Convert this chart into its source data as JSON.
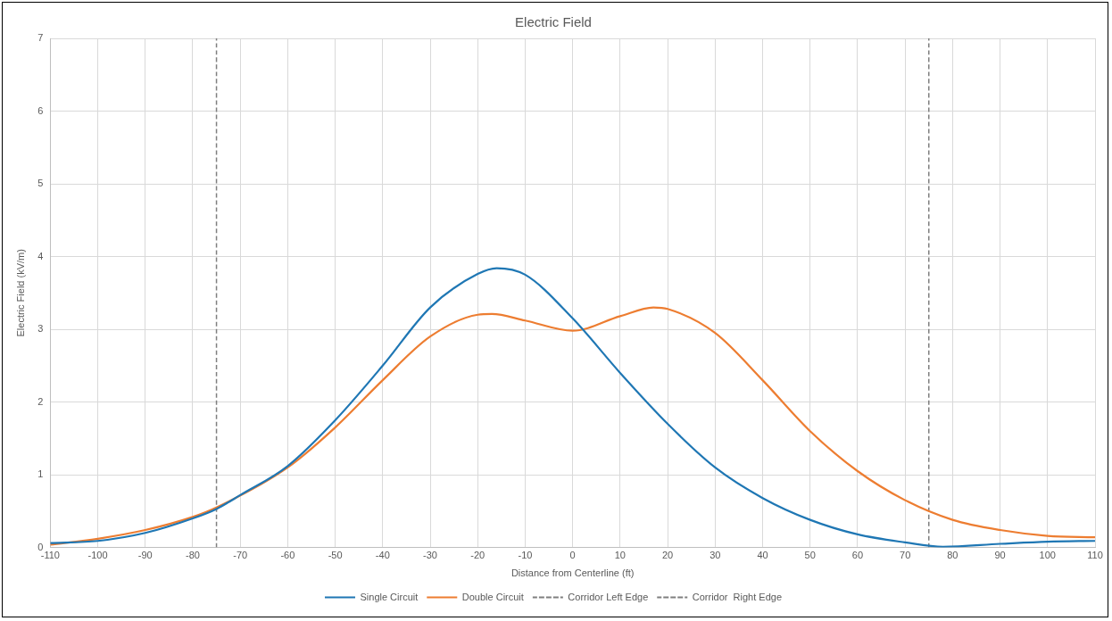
{
  "chart_data": {
    "type": "line",
    "title": "Electric Field",
    "xlabel": "Distance from Centerline (ft)",
    "ylabel": "Electric Field (kV/m)",
    "xlim": [
      -110,
      110
    ],
    "xticks": [
      -110,
      -100,
      -90,
      -80,
      -70,
      -60,
      -50,
      -40,
      -30,
      -20,
      -10,
      0,
      10,
      20,
      30,
      40,
      50,
      60,
      70,
      80,
      90,
      100,
      110
    ],
    "ylim": [
      0,
      7
    ],
    "yticks": [
      0,
      1,
      2,
      3,
      4,
      5,
      6,
      7
    ],
    "grid": true,
    "legend": "bottom",
    "marker": "none",
    "series": [
      {
        "name": "Single Circuit",
        "color": "#1f77b4",
        "line_style": "solid",
        "x": [
          -110,
          -100,
          -90,
          -80,
          -75,
          -70,
          -60,
          -50,
          -40,
          -30,
          -20,
          -16,
          -10,
          0,
          10,
          20,
          30,
          40,
          50,
          60,
          70,
          78,
          90,
          100,
          110
        ],
        "values": [
          0.06,
          0.09,
          0.2,
          0.4,
          0.53,
          0.72,
          1.12,
          1.75,
          2.5,
          3.3,
          3.76,
          3.84,
          3.75,
          3.15,
          2.4,
          1.7,
          1.1,
          0.68,
          0.38,
          0.18,
          0.07,
          0.01,
          0.05,
          0.08,
          0.09
        ]
      },
      {
        "name": "Double Circuit",
        "color": "#ed7d31",
        "line_style": "solid",
        "x": [
          -110,
          -100,
          -90,
          -80,
          -75,
          -60,
          -50,
          -40,
          -30,
          -20,
          -17,
          -10,
          0,
          10,
          17,
          20,
          30,
          40,
          50,
          60,
          70,
          80,
          90,
          100,
          110
        ],
        "values": [
          0.04,
          0.12,
          0.24,
          0.42,
          0.55,
          1.1,
          1.65,
          2.3,
          2.9,
          3.2,
          3.21,
          3.12,
          2.98,
          3.18,
          3.3,
          3.28,
          2.95,
          2.3,
          1.6,
          1.05,
          0.65,
          0.38,
          0.24,
          0.16,
          0.14
        ]
      },
      {
        "name": "Corridor Left Edge",
        "color": "#7f7f7f",
        "line_style": "dashed",
        "x": [
          -75,
          -75
        ],
        "values": [
          0,
          7
        ]
      },
      {
        "name": "Corridor  Right Edge",
        "color": "#7f7f7f",
        "line_style": "dashed",
        "x": [
          75,
          75
        ],
        "values": [
          0,
          7
        ]
      }
    ]
  }
}
